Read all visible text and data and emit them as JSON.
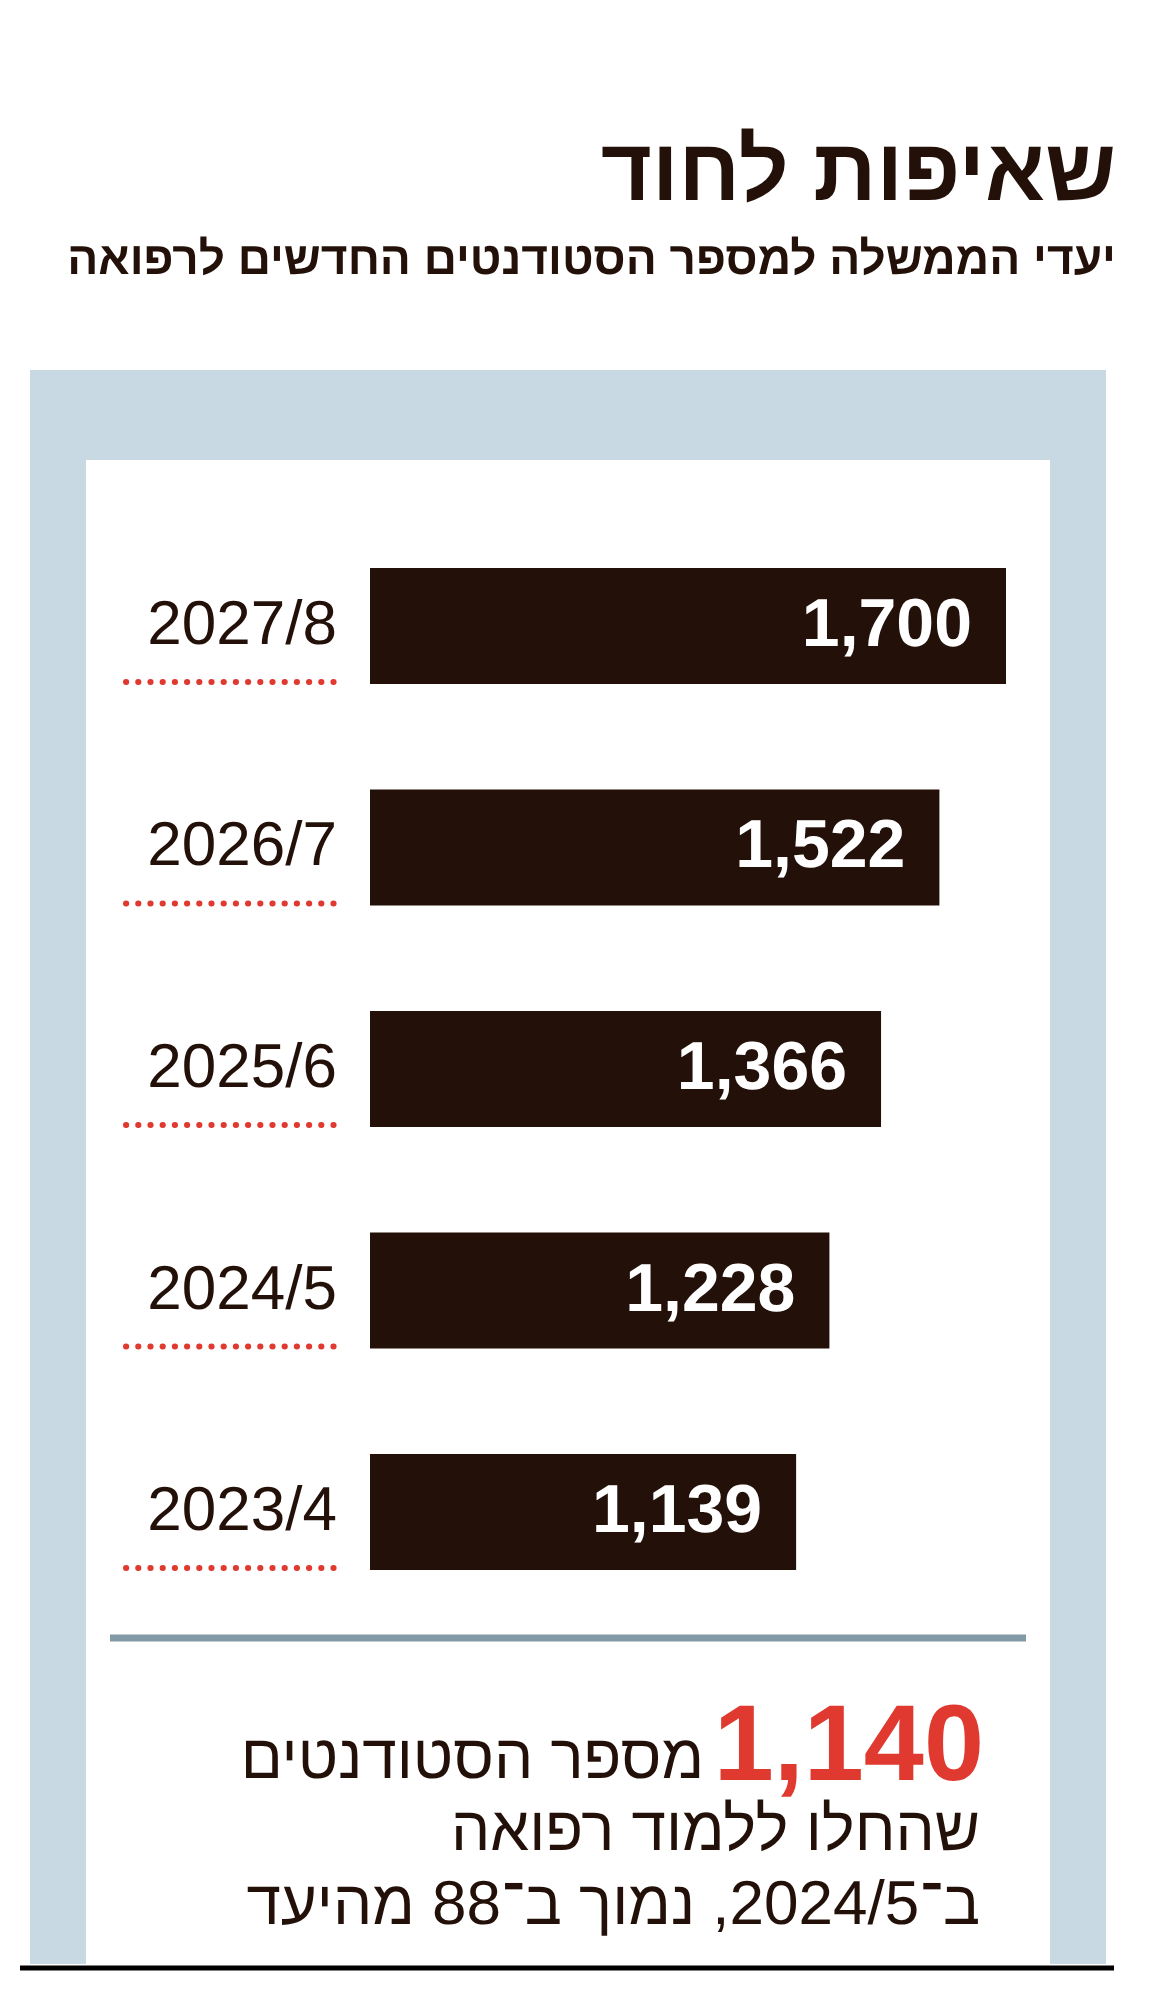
{
  "chart_data": {
    "type": "bar",
    "orientation": "horizontal",
    "title": "שאיפות לחוד",
    "subtitle": "יעדי הממשלה למספר הסטודנטים החדשים לרפואה",
    "categories": [
      "2027/8",
      "2026/7",
      "2025/6",
      "2024/5",
      "2023/4"
    ],
    "values": [
      1700,
      1522,
      1366,
      1228,
      1139
    ],
    "color": "#231109",
    "value_labels": [
      "1,700",
      "1,522",
      "1,366",
      "1,228",
      "1,139"
    ],
    "annotations": [
      "1,140 מספר הסטודנטים שהחלו ללמוד רפואה ב־2024/5, נמוך ב־88 מהיעד"
    ]
  }
}
